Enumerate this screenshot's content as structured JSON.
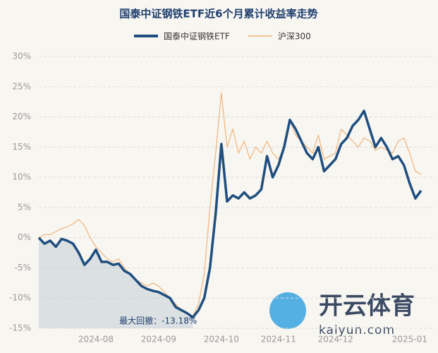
{
  "chart_data": {
    "type": "line",
    "title": "国泰中证钢铁ETF近6个月累计收益率走势",
    "categories": [
      null,
      null,
      null,
      null,
      null,
      null,
      null,
      null,
      null,
      null,
      "2024-08",
      null,
      null,
      null,
      null,
      null,
      null,
      null,
      null,
      null,
      null,
      "2024-09",
      null,
      null,
      null,
      null,
      null,
      null,
      null,
      null,
      null,
      null,
      "2024-10",
      null,
      null,
      null,
      null,
      null,
      null,
      null,
      null,
      null,
      "2024-11",
      null,
      null,
      null,
      null,
      null,
      null,
      null,
      null,
      null,
      "2024-12",
      null,
      null,
      null,
      null,
      null,
      null,
      null,
      null,
      null,
      null,
      null,
      null,
      "2025-01",
      null,
      null
    ],
    "series": [
      {
        "name": "国泰中证钢铁ETF",
        "color": "#1f4e7f",
        "values": [
          0,
          -1,
          -0.5,
          -1.5,
          -0.2,
          -0.5,
          -1,
          -2.5,
          -4.5,
          -3.5,
          -2,
          -4,
          -4,
          -4.5,
          -4.3,
          -5.5,
          -6,
          -7,
          -8,
          -8.5,
          -8.8,
          -9,
          -9.5,
          -10,
          -11.5,
          -12,
          -12.5,
          -13.18,
          -12,
          -10,
          -5,
          4,
          15.5,
          6,
          7,
          6.5,
          7.5,
          6.5,
          7,
          8,
          13.5,
          10,
          12,
          15,
          19.5,
          18,
          16,
          14,
          13,
          15,
          11,
          12,
          13,
          15.5,
          16.5,
          18.5,
          19.5,
          21,
          18,
          15,
          16.5,
          15,
          13,
          13.5,
          12,
          9,
          6.5,
          7.8
        ]
      },
      {
        "name": "沪深300",
        "color": "#f0b47a",
        "values": [
          0,
          0.5,
          0.5,
          1,
          1.5,
          1.8,
          2.3,
          3,
          2,
          0,
          -1.5,
          -2.5,
          -3.5,
          -4,
          -3.5,
          -5,
          -6,
          -7,
          -7.5,
          -8,
          -7.5,
          -8,
          -9,
          -10,
          -11,
          -12,
          -12.5,
          -13,
          -11,
          -6,
          5,
          14,
          24,
          15,
          18,
          14,
          16,
          13,
          15,
          14,
          16,
          14,
          13,
          15,
          19.5,
          17,
          16,
          15,
          14,
          17,
          13,
          13.5,
          14,
          18,
          17,
          16,
          15,
          16.5,
          16,
          14.5,
          15,
          14.5,
          14,
          16,
          16.5,
          14,
          11,
          10.5
        ]
      }
    ],
    "annotation": "最大回撤：-13.18%",
    "ylim": [
      -15,
      30
    ],
    "yticks": [
      {
        "value": -15,
        "label": "-15%"
      },
      {
        "value": -10,
        "label": "-10%"
      },
      {
        "value": -5,
        "label": "-5%"
      },
      {
        "value": 0,
        "label": "0%"
      },
      {
        "value": 5,
        "label": "5%"
      },
      {
        "value": 10,
        "label": "10%"
      },
      {
        "value": 15,
        "label": "15%"
      },
      {
        "value": 20,
        "label": "20%"
      },
      {
        "value": 25,
        "label": "25%"
      },
      {
        "value": 30,
        "label": "30%"
      }
    ],
    "grid": true,
    "watermark": "开云体育",
    "watermark_url": "kaiyun.com"
  }
}
